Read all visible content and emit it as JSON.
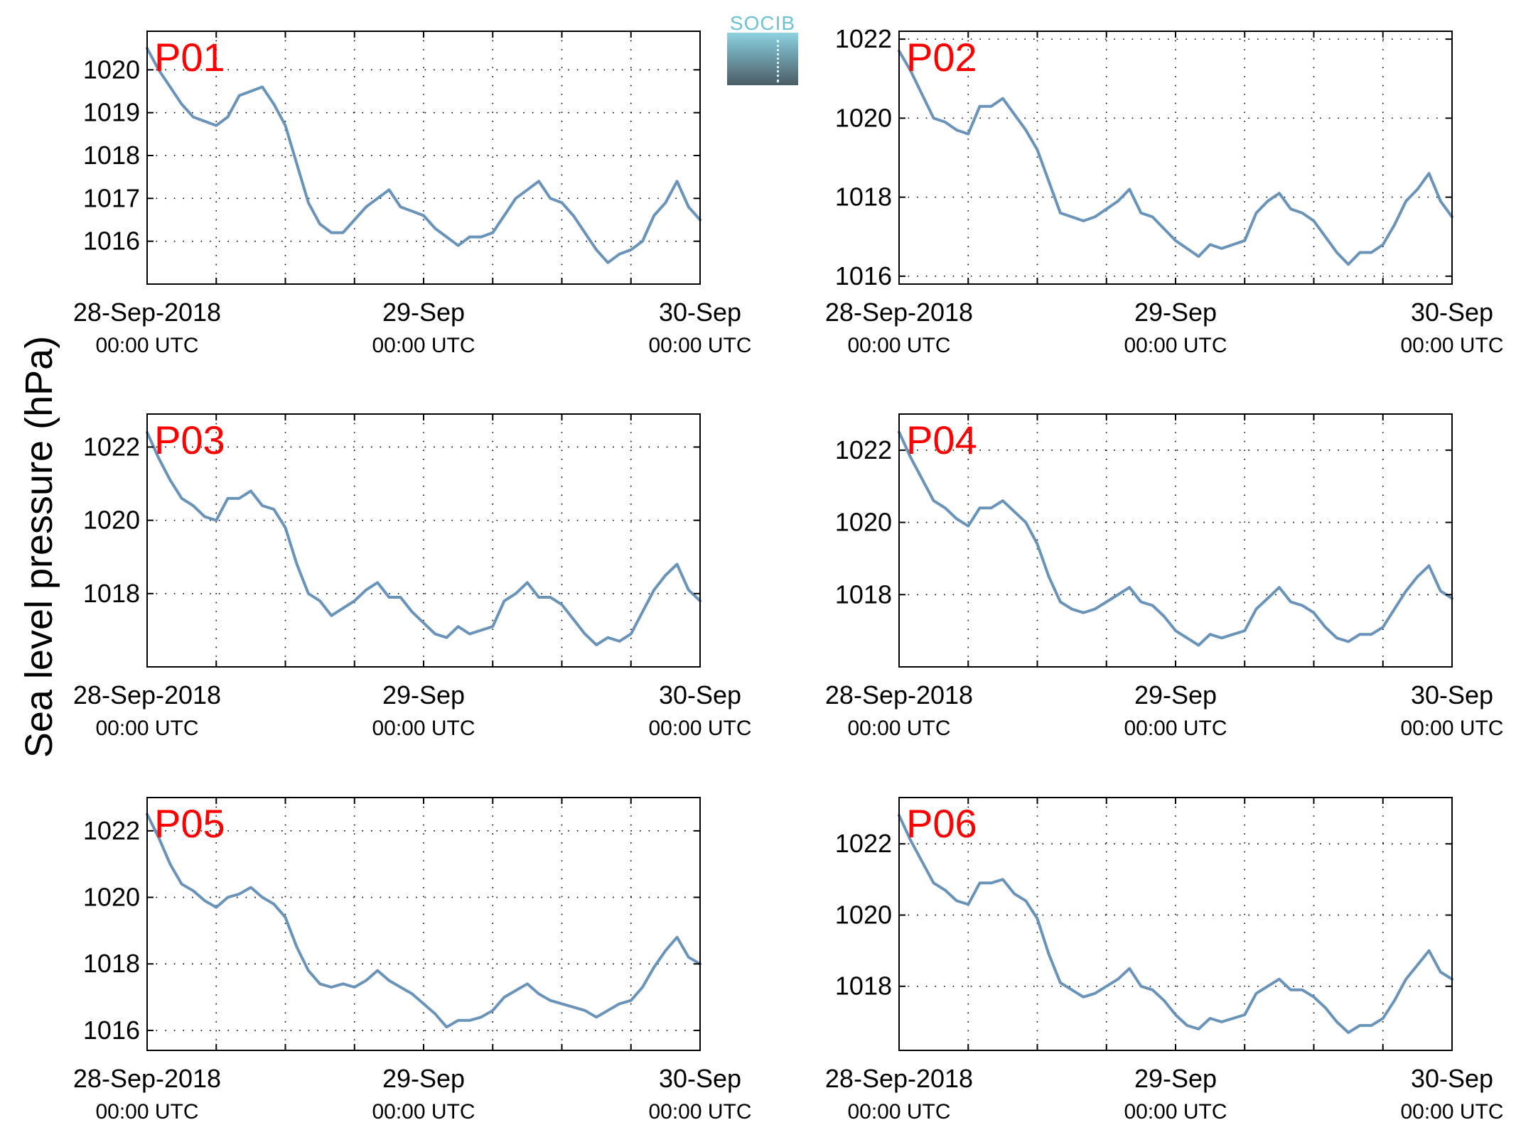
{
  "figure": {
    "ylabel": "Sea level pressure (hPa)",
    "logo_text": "SOCIB",
    "line_color": "#6993b8",
    "label_color": "#ff0000"
  },
  "chart_data": [
    {
      "type": "line",
      "title": "P01",
      "x_tick_labels": [
        [
          "28-Sep-2018",
          "00:00 UTC"
        ],
        [
          "29-Sep",
          "00:00 UTC"
        ],
        [
          "30-Sep",
          "00:00 UTC"
        ]
      ],
      "xlim": [
        "28-Sep-2018 00:00",
        "30-Sep-2018 00:00"
      ],
      "ylim": [
        1015.0,
        1020.9
      ],
      "yticks": [
        1016,
        1017,
        1018,
        1019,
        1020
      ],
      "grid": true,
      "x_hours": [
        0,
        1,
        2,
        3,
        4,
        5,
        6,
        7,
        8,
        9,
        10,
        11,
        12,
        13,
        14,
        15,
        16,
        17,
        18,
        19,
        20,
        21,
        22,
        23,
        24,
        25,
        26,
        27,
        28,
        29,
        30,
        31,
        32,
        33,
        34,
        35,
        36,
        37,
        38,
        39,
        40,
        41,
        42,
        43,
        44,
        45,
        46,
        47,
        48
      ],
      "values": [
        1020.5,
        1020.0,
        1019.6,
        1019.2,
        1018.9,
        1018.8,
        1018.7,
        1018.9,
        1019.4,
        1019.5,
        1019.6,
        1019.2,
        1018.7,
        1017.8,
        1016.9,
        1016.4,
        1016.2,
        1016.2,
        1016.5,
        1016.8,
        1017.0,
        1017.2,
        1016.8,
        1016.7,
        1016.6,
        1016.3,
        1016.1,
        1015.9,
        1016.1,
        1016.1,
        1016.2,
        1016.6,
        1017.0,
        1017.2,
        1017.4,
        1017.0,
        1016.9,
        1016.6,
        1016.2,
        1015.8,
        1015.5,
        1015.7,
        1015.8,
        1016.0,
        1016.6,
        1016.9,
        1017.4,
        1016.8,
        1016.5
      ]
    },
    {
      "type": "line",
      "title": "P02",
      "x_tick_labels": [
        [
          "28-Sep-2018",
          "00:00 UTC"
        ],
        [
          "29-Sep",
          "00:00 UTC"
        ],
        [
          "30-Sep",
          "00:00 UTC"
        ]
      ],
      "xlim": [
        "28-Sep-2018 00:00",
        "30-Sep-2018 00:00"
      ],
      "ylim": [
        1015.8,
        1022.2
      ],
      "yticks": [
        1016,
        1018,
        1020,
        1022
      ],
      "grid": true,
      "x_hours": [
        0,
        1,
        2,
        3,
        4,
        5,
        6,
        7,
        8,
        9,
        10,
        11,
        12,
        13,
        14,
        15,
        16,
        17,
        18,
        19,
        20,
        21,
        22,
        23,
        24,
        25,
        26,
        27,
        28,
        29,
        30,
        31,
        32,
        33,
        34,
        35,
        36,
        37,
        38,
        39,
        40,
        41,
        42,
        43,
        44,
        45,
        46,
        47,
        48
      ],
      "values": [
        1021.7,
        1021.2,
        1020.6,
        1020.0,
        1019.9,
        1019.7,
        1019.6,
        1020.3,
        1020.3,
        1020.5,
        1020.1,
        1019.7,
        1019.2,
        1018.4,
        1017.6,
        1017.5,
        1017.4,
        1017.5,
        1017.7,
        1017.9,
        1018.2,
        1017.6,
        1017.5,
        1017.2,
        1016.9,
        1016.7,
        1016.5,
        1016.8,
        1016.7,
        1016.8,
        1016.9,
        1017.6,
        1017.9,
        1018.1,
        1017.7,
        1017.6,
        1017.4,
        1017.0,
        1016.6,
        1016.3,
        1016.6,
        1016.6,
        1016.8,
        1017.3,
        1017.9,
        1018.2,
        1018.6,
        1017.9,
        1017.5
      ]
    },
    {
      "type": "line",
      "title": "P03",
      "x_tick_labels": [
        [
          "28-Sep-2018",
          "00:00 UTC"
        ],
        [
          "29-Sep",
          "00:00 UTC"
        ],
        [
          "30-Sep",
          "00:00 UTC"
        ]
      ],
      "xlim": [
        "28-Sep-2018 00:00",
        "30-Sep-2018 00:00"
      ],
      "ylim": [
        1016.0,
        1022.9
      ],
      "yticks": [
        1018,
        1020,
        1022
      ],
      "grid": true,
      "x_hours": [
        0,
        1,
        2,
        3,
        4,
        5,
        6,
        7,
        8,
        9,
        10,
        11,
        12,
        13,
        14,
        15,
        16,
        17,
        18,
        19,
        20,
        21,
        22,
        23,
        24,
        25,
        26,
        27,
        28,
        29,
        30,
        31,
        32,
        33,
        34,
        35,
        36,
        37,
        38,
        39,
        40,
        41,
        42,
        43,
        44,
        45,
        46,
        47,
        48
      ],
      "values": [
        1022.4,
        1021.7,
        1021.1,
        1020.6,
        1020.4,
        1020.1,
        1020.0,
        1020.6,
        1020.6,
        1020.8,
        1020.4,
        1020.3,
        1019.8,
        1018.8,
        1018.0,
        1017.8,
        1017.4,
        1017.6,
        1017.8,
        1018.1,
        1018.3,
        1017.9,
        1017.9,
        1017.5,
        1017.2,
        1016.9,
        1016.8,
        1017.1,
        1016.9,
        1017.0,
        1017.1,
        1017.8,
        1018.0,
        1018.3,
        1017.9,
        1017.9,
        1017.7,
        1017.3,
        1016.9,
        1016.6,
        1016.8,
        1016.7,
        1016.9,
        1017.5,
        1018.1,
        1018.5,
        1018.8,
        1018.1,
        1017.8
      ]
    },
    {
      "type": "line",
      "title": "P04",
      "x_tick_labels": [
        [
          "28-Sep-2018",
          "00:00 UTC"
        ],
        [
          "29-Sep",
          "00:00 UTC"
        ],
        [
          "30-Sep",
          "00:00 UTC"
        ]
      ],
      "xlim": [
        "28-Sep-2018 00:00",
        "30-Sep-2018 00:00"
      ],
      "ylim": [
        1016.0,
        1023.0
      ],
      "yticks": [
        1018,
        1020,
        1022
      ],
      "grid": true,
      "x_hours": [
        0,
        1,
        2,
        3,
        4,
        5,
        6,
        7,
        8,
        9,
        10,
        11,
        12,
        13,
        14,
        15,
        16,
        17,
        18,
        19,
        20,
        21,
        22,
        23,
        24,
        25,
        26,
        27,
        28,
        29,
        30,
        31,
        32,
        33,
        34,
        35,
        36,
        37,
        38,
        39,
        40,
        41,
        42,
        43,
        44,
        45,
        46,
        47,
        48
      ],
      "values": [
        1022.5,
        1021.8,
        1021.2,
        1020.6,
        1020.4,
        1020.1,
        1019.9,
        1020.4,
        1020.4,
        1020.6,
        1020.3,
        1020.0,
        1019.4,
        1018.5,
        1017.8,
        1017.6,
        1017.5,
        1017.6,
        1017.8,
        1018.0,
        1018.2,
        1017.8,
        1017.7,
        1017.4,
        1017.0,
        1016.8,
        1016.6,
        1016.9,
        1016.8,
        1016.9,
        1017.0,
        1017.6,
        1017.9,
        1018.2,
        1017.8,
        1017.7,
        1017.5,
        1017.1,
        1016.8,
        1016.7,
        1016.9,
        1016.9,
        1017.1,
        1017.6,
        1018.1,
        1018.5,
        1018.8,
        1018.1,
        1017.9
      ]
    },
    {
      "type": "line",
      "title": "P05",
      "x_tick_labels": [
        [
          "28-Sep-2018",
          "00:00 UTC"
        ],
        [
          "29-Sep",
          "00:00 UTC"
        ],
        [
          "30-Sep",
          "00:00 UTC"
        ]
      ],
      "xlim": [
        "28-Sep-2018 00:00",
        "30-Sep-2018 00:00"
      ],
      "ylim": [
        1015.4,
        1023.0
      ],
      "yticks": [
        1016,
        1018,
        1020,
        1022
      ],
      "grid": true,
      "x_hours": [
        0,
        1,
        2,
        3,
        4,
        5,
        6,
        7,
        8,
        9,
        10,
        11,
        12,
        13,
        14,
        15,
        16,
        17,
        18,
        19,
        20,
        21,
        22,
        23,
        24,
        25,
        26,
        27,
        28,
        29,
        30,
        31,
        32,
        33,
        34,
        35,
        36,
        37,
        38,
        39,
        40,
        41,
        42,
        43,
        44,
        45,
        46,
        47,
        48
      ],
      "values": [
        1022.5,
        1021.8,
        1021.0,
        1020.4,
        1020.2,
        1019.9,
        1019.7,
        1020.0,
        1020.1,
        1020.3,
        1020.0,
        1019.8,
        1019.4,
        1018.5,
        1017.8,
        1017.4,
        1017.3,
        1017.4,
        1017.3,
        1017.5,
        1017.8,
        1017.5,
        1017.3,
        1017.1,
        1016.8,
        1016.5,
        1016.1,
        1016.3,
        1016.3,
        1016.4,
        1016.6,
        1017.0,
        1017.2,
        1017.4,
        1017.1,
        1016.9,
        1016.8,
        1016.7,
        1016.6,
        1016.4,
        1016.6,
        1016.8,
        1016.9,
        1017.3,
        1017.9,
        1018.4,
        1018.8,
        1018.2,
        1018.0
      ]
    },
    {
      "type": "line",
      "title": "P06",
      "x_tick_labels": [
        [
          "28-Sep-2018",
          "00:00 UTC"
        ],
        [
          "29-Sep",
          "00:00 UTC"
        ],
        [
          "30-Sep",
          "00:00 UTC"
        ]
      ],
      "xlim": [
        "28-Sep-2018 00:00",
        "30-Sep-2018 00:00"
      ],
      "ylim": [
        1016.2,
        1023.3
      ],
      "yticks": [
        1018,
        1020,
        1022
      ],
      "grid": true,
      "x_hours": [
        0,
        1,
        2,
        3,
        4,
        5,
        6,
        7,
        8,
        9,
        10,
        11,
        12,
        13,
        14,
        15,
        16,
        17,
        18,
        19,
        20,
        21,
        22,
        23,
        24,
        25,
        26,
        27,
        28,
        29,
        30,
        31,
        32,
        33,
        34,
        35,
        36,
        37,
        38,
        39,
        40,
        41,
        42,
        43,
        44,
        45,
        46,
        47,
        48
      ],
      "values": [
        1022.8,
        1022.1,
        1021.5,
        1020.9,
        1020.7,
        1020.4,
        1020.3,
        1020.9,
        1020.9,
        1021.0,
        1020.6,
        1020.4,
        1019.9,
        1018.9,
        1018.1,
        1017.9,
        1017.7,
        1017.8,
        1018.0,
        1018.2,
        1018.5,
        1018.0,
        1017.9,
        1017.6,
        1017.2,
        1016.9,
        1016.8,
        1017.1,
        1017.0,
        1017.1,
        1017.2,
        1017.8,
        1018.0,
        1018.2,
        1017.9,
        1017.9,
        1017.7,
        1017.4,
        1017.0,
        1016.7,
        1016.9,
        1016.9,
        1017.1,
        1017.6,
        1018.2,
        1018.6,
        1019.0,
        1018.4,
        1018.2
      ]
    }
  ]
}
